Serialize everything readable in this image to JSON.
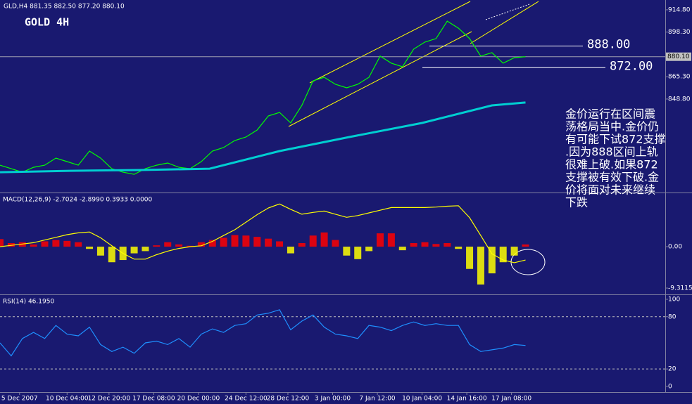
{
  "chart_data": [
    {
      "type": "line",
      "title": "GOLD 4H",
      "subtitle": "GLD,H4  881.35 882.50 877.20 880.10",
      "x": [
        0,
        4,
        8,
        12,
        16,
        20,
        24,
        28,
        32,
        36,
        40,
        44,
        48,
        52,
        56,
        60,
        64,
        68,
        72,
        76,
        80,
        84,
        88,
        92,
        96,
        100,
        104,
        108,
        112,
        116,
        120,
        124,
        128,
        132,
        136,
        140,
        144,
        148,
        152,
        156,
        160,
        164,
        168,
        172,
        176,
        180,
        184,
        188
      ],
      "series": [
        {
          "color": "#00ff00",
          "values": [
            799.9,
            797.3,
            794.7,
            798.3,
            799.9,
            805.1,
            802.5,
            799.9,
            810.3,
            805.1,
            797.3,
            794.7,
            793.1,
            797.3,
            799.9,
            801.5,
            798.3,
            797.3,
            802.5,
            810.3,
            812.9,
            818.1,
            820.7,
            825.9,
            836.3,
            838.9,
            831.1,
            844.1,
            862.3,
            864.9,
            859.7,
            857.1,
            859.7,
            864.9,
            880.5,
            875.3,
            872.7,
            885.7,
            890.9,
            893.5,
            906.4,
            901.2,
            893.5,
            880.5,
            883.1,
            875.3,
            879.4,
            880.1
          ]
        },
        {
          "color": "#00ced1",
          "x": [
            0,
            25,
            50,
            75,
            100,
            125,
            151,
            176,
            188
          ],
          "values": [
            794.7,
            795.7,
            796.3,
            797.3,
            810.3,
            820.7,
            831.1,
            844.1,
            846.2
          ]
        }
      ],
      "levels": [
        {
          "value": 888,
          "label": "888.00"
        },
        {
          "value": 872,
          "label": "872.00"
        }
      ],
      "current": {
        "value": 880.1,
        "label": "880.10"
      },
      "xlim": [
        0,
        238
      ],
      "ylim": [
        780.7,
        921.0
      ],
      "yticks": [
        {
          "value": 914.8,
          "label": "914.80"
        },
        {
          "value": 898.3,
          "label": "898.30"
        },
        {
          "value": 865.3,
          "label": "865.30"
        },
        {
          "value": 848.8,
          "label": "848.80"
        }
      ],
      "annotation": [
        "金价运行在区间震",
        "荡格局当中.金价仍",
        "有可能下试872支撑",
        ".因为888区间上轨",
        "很难上破.如果872",
        "支撑被有效下破.金",
        "价将面对未来继续",
        "下跌"
      ]
    },
    {
      "type": "macd",
      "title": "MACD(12,26,9) -2.7024 -2.8990 0.3933 0.0000",
      "x": [
        0,
        4,
        8,
        12,
        16,
        20,
        24,
        28,
        32,
        36,
        40,
        44,
        48,
        52,
        56,
        60,
        64,
        68,
        72,
        76,
        80,
        84,
        88,
        92,
        96,
        100,
        104,
        108,
        112,
        116,
        120,
        124,
        128,
        132,
        136,
        140,
        144,
        148,
        152,
        156,
        160,
        164,
        168,
        172,
        176,
        180,
        184,
        188
      ],
      "values": [
        1.7,
        0.8,
        1.0,
        0.5,
        1.2,
        1.5,
        1.3,
        1.0,
        -0.5,
        -2.0,
        -3.5,
        -3.0,
        -1.5,
        -1.0,
        0.3,
        1.0,
        0.5,
        0.2,
        1.0,
        1.5,
        2.0,
        2.6,
        2.5,
        2.2,
        1.8,
        1.2,
        -1.5,
        0.8,
        2.5,
        3.2,
        1.5,
        -2.0,
        -2.8,
        -1.0,
        3.0,
        3.0,
        -0.8,
        0.8,
        1.0,
        0.6,
        0.8,
        -0.5,
        -5.0,
        -8.5,
        -6.0,
        -3.5,
        -2.0,
        0.5
      ],
      "colors": {
        "up": "#ff0000",
        "down": "#ffff00"
      },
      "series": [
        {
          "color": "#ffff00",
          "values": [
            0,
            0.3,
            0.6,
            0.9,
            1.5,
            2.1,
            2.7,
            3.1,
            3.3,
            2.0,
            0.2,
            -1.5,
            -2.8,
            -2.8,
            -1.8,
            -1.0,
            -0.4,
            0,
            0.2,
            1.2,
            2.5,
            3.8,
            5.5,
            7.2,
            8.7,
            9.6,
            8.4,
            7.3,
            7.7,
            8.0,
            7.3,
            6.6,
            7.0,
            7.6,
            8.2,
            8.8,
            8.8,
            8.8,
            8.8,
            8.9,
            9.1,
            9.2,
            6.5,
            2.5,
            -1.6,
            -3.0,
            -3.6,
            -3.0
          ]
        }
      ],
      "xlim": [
        0,
        238
      ],
      "ylim": [
        -10.57,
        11.7
      ],
      "yticks": [
        {
          "value": 0,
          "label": "0.00"
        },
        -9.3115
      ]
    },
    {
      "type": "line",
      "title": "RSI(14) 46.1950",
      "x": [
        0,
        4,
        8,
        12,
        16,
        20,
        24,
        28,
        32,
        36,
        40,
        44,
        48,
        52,
        56,
        60,
        64,
        68,
        72,
        76,
        80,
        84,
        88,
        92,
        96,
        100,
        104,
        108,
        112,
        116,
        120,
        124,
        128,
        132,
        136,
        140,
        144,
        148,
        152,
        156,
        160,
        164,
        168,
        172,
        176,
        180,
        184,
        188
      ],
      "series": [
        {
          "color": "#1e90ff",
          "values": [
            50,
            35,
            55,
            62,
            55,
            70,
            60,
            58,
            68,
            48,
            40,
            45,
            38,
            50,
            52,
            48,
            55,
            45,
            60,
            66,
            62,
            70,
            72,
            82,
            84,
            88,
            65,
            75,
            82,
            68,
            60,
            58,
            55,
            70,
            68,
            64,
            70,
            74,
            70,
            72,
            70,
            70,
            48,
            40,
            42,
            44,
            48,
            47
          ]
        }
      ],
      "levels": [
        20,
        80
      ],
      "xlim": [
        0,
        238
      ],
      "ylim": [
        -6.5,
        104
      ],
      "yticks": [
        100,
        80,
        20,
        0
      ],
      "xticks": [
        {
          "value": 7,
          "label": "5 Dec 2007"
        },
        {
          "value": 24,
          "label": "10 Dec 04:00"
        },
        {
          "value": 39,
          "label": "12 Dec 20:00"
        },
        {
          "value": 55,
          "label": "17 Dec 08:00"
        },
        {
          "value": 71,
          "label": "20 Dec 00:00"
        },
        {
          "value": 88,
          "label": "24 Dec 12:00"
        },
        {
          "value": 103,
          "label": "28 Dec 12:00"
        },
        {
          "value": 119,
          "label": "3 Jan 00:00"
        },
        {
          "value": 135,
          "label": "7 Jan 12:00"
        },
        {
          "value": 151,
          "label": "10 Jan 04:00"
        },
        {
          "value": 167,
          "label": "14 Jan 16:00"
        },
        {
          "value": 183,
          "label": "17 Jan 08:00"
        }
      ]
    }
  ]
}
